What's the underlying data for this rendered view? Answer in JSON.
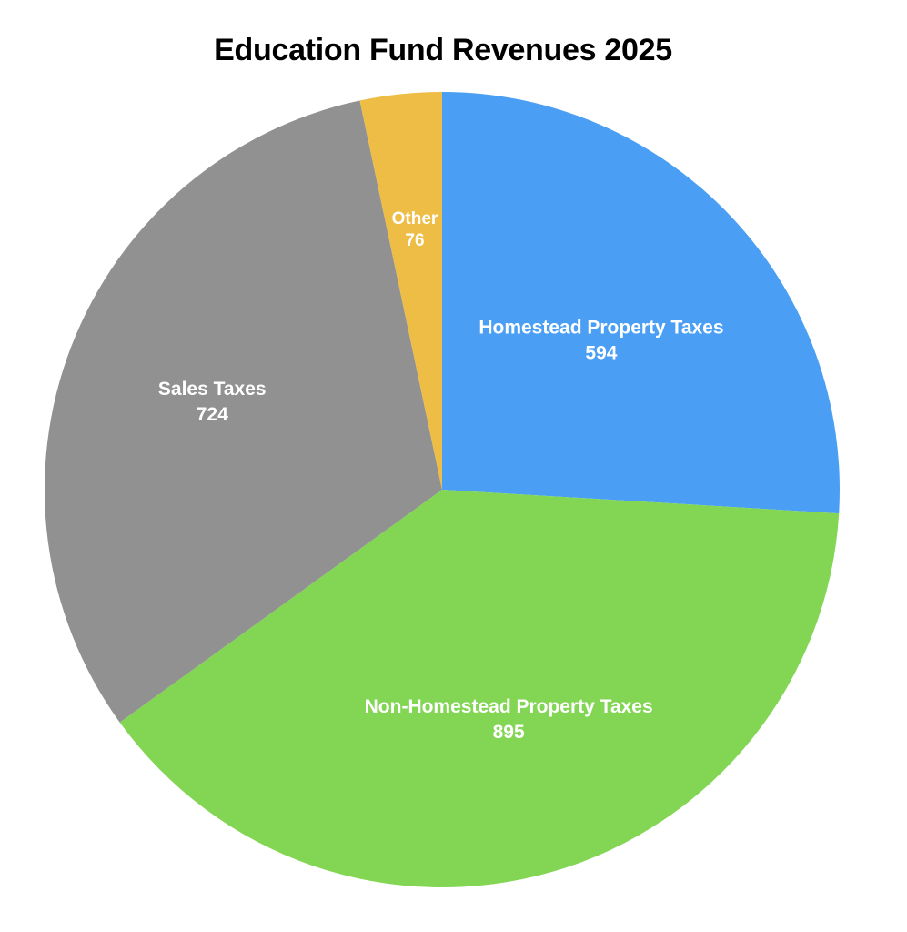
{
  "chart_data": {
    "type": "pie",
    "title": "Education Fund Revenues 2025",
    "start_angle": "top",
    "direction": "clockwise",
    "slices": [
      {
        "label": "Homestead Property Taxes",
        "value": 594,
        "color": "#4A9FF5"
      },
      {
        "label": "Non-Homestead Property Taxes",
        "value": 895,
        "color": "#82D654"
      },
      {
        "label": "Sales Taxes",
        "value": 724,
        "color": "#919191"
      },
      {
        "label": "Other",
        "value": 76,
        "color": "#EEBD45"
      }
    ]
  }
}
